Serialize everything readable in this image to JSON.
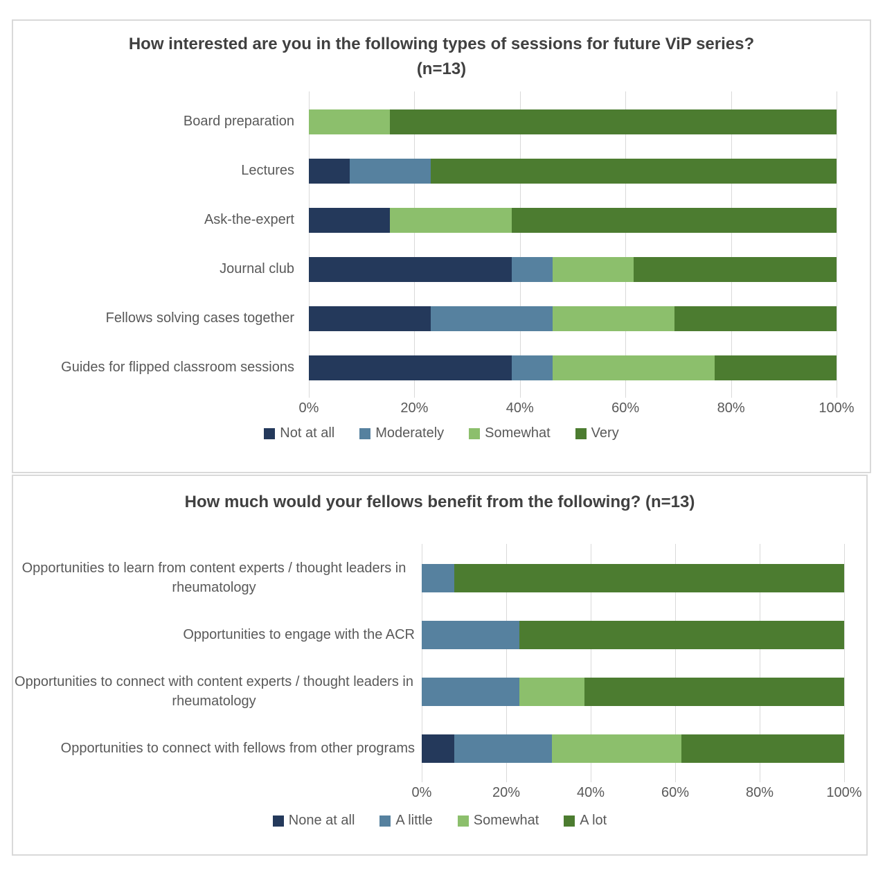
{
  "style": {
    "panel_border": "#D9D9D9",
    "gridline_color": "#D9D9D9",
    "title_color": "#404040",
    "label_color": "#595959",
    "background": "#FFFFFF"
  },
  "chart_data": [
    {
      "type": "bar",
      "subtype": "stacked-horizontal-100pct",
      "title": "How interested are you in the following types of sessions for future ViP series? (n=13)",
      "n": 13,
      "categories": [
        "Board preparation",
        "Lectures",
        "Ask-the-expert",
        "Journal club",
        "Fellows solving cases together",
        "Guides for flipped classroom sessions"
      ],
      "series": [
        {
          "name": "Not at all",
          "color": "#24395B",
          "values": [
            0,
            1,
            2,
            5,
            3,
            5
          ]
        },
        {
          "name": "Moderately",
          "color": "#56819F",
          "values": [
            0,
            2,
            0,
            1,
            3,
            1
          ]
        },
        {
          "name": "Somewhat",
          "color": "#8CBF6C",
          "values": [
            2,
            0,
            3,
            2,
            3,
            4
          ]
        },
        {
          "name": "Very",
          "color": "#4C7C30",
          "values": [
            11,
            10,
            8,
            5,
            4,
            3
          ]
        }
      ],
      "percentages": [
        {
          "Somewhat": 15.4,
          "Very": 84.6
        },
        {
          "Not at all": 7.7,
          "Moderately": 15.4,
          "Very": 76.9
        },
        {
          "Not at all": 15.4,
          "Somewhat": 23.1,
          "Very": 61.5
        },
        {
          "Not at all": 38.5,
          "Moderately": 7.7,
          "Somewhat": 15.4,
          "Very": 38.5
        },
        {
          "Not at all": 23.1,
          "Moderately": 23.1,
          "Somewhat": 23.1,
          "Very": 30.8
        },
        {
          "Not at all": 38.5,
          "Moderately": 7.7,
          "Somewhat": 30.8,
          "Very": 23.1
        }
      ],
      "x_ticks": [
        "0%",
        "20%",
        "40%",
        "60%",
        "80%",
        "100%"
      ],
      "xlim": [
        0,
        100
      ],
      "grid": "vertical",
      "legend_position": "bottom"
    },
    {
      "type": "bar",
      "subtype": "stacked-horizontal-100pct",
      "title": "How much would your fellows benefit from the following? (n=13)",
      "n": 13,
      "categories": [
        "Opportunities to learn from content experts / thought leaders in rheumatology",
        "Opportunities to engage with the ACR",
        "Opportunities to connect with content experts / thought leaders in rheumatology",
        "Opportunities to connect with fellows from other programs"
      ],
      "series": [
        {
          "name": "None at all",
          "color": "#24395B",
          "values": [
            0,
            0,
            0,
            1
          ]
        },
        {
          "name": "A little",
          "color": "#56819F",
          "values": [
            1,
            3,
            3,
            3
          ]
        },
        {
          "name": "Somewhat",
          "color": "#8CBF6C",
          "values": [
            0,
            0,
            2,
            4
          ]
        },
        {
          "name": "A lot",
          "color": "#4C7C30",
          "values": [
            12,
            10,
            8,
            5
          ]
        }
      ],
      "percentages": [
        {
          "A little": 7.7,
          "A lot": 92.3
        },
        {
          "A little": 23.1,
          "A lot": 76.9
        },
        {
          "A little": 23.1,
          "Somewhat": 15.4,
          "A lot": 61.5
        },
        {
          "None at all": 7.7,
          "A little": 23.1,
          "Somewhat": 30.8,
          "A lot": 38.5
        }
      ],
      "x_ticks": [
        "0%",
        "20%",
        "40%",
        "60%",
        "80%",
        "100%"
      ],
      "xlim": [
        0,
        100
      ],
      "grid": "vertical",
      "legend_position": "bottom"
    }
  ]
}
